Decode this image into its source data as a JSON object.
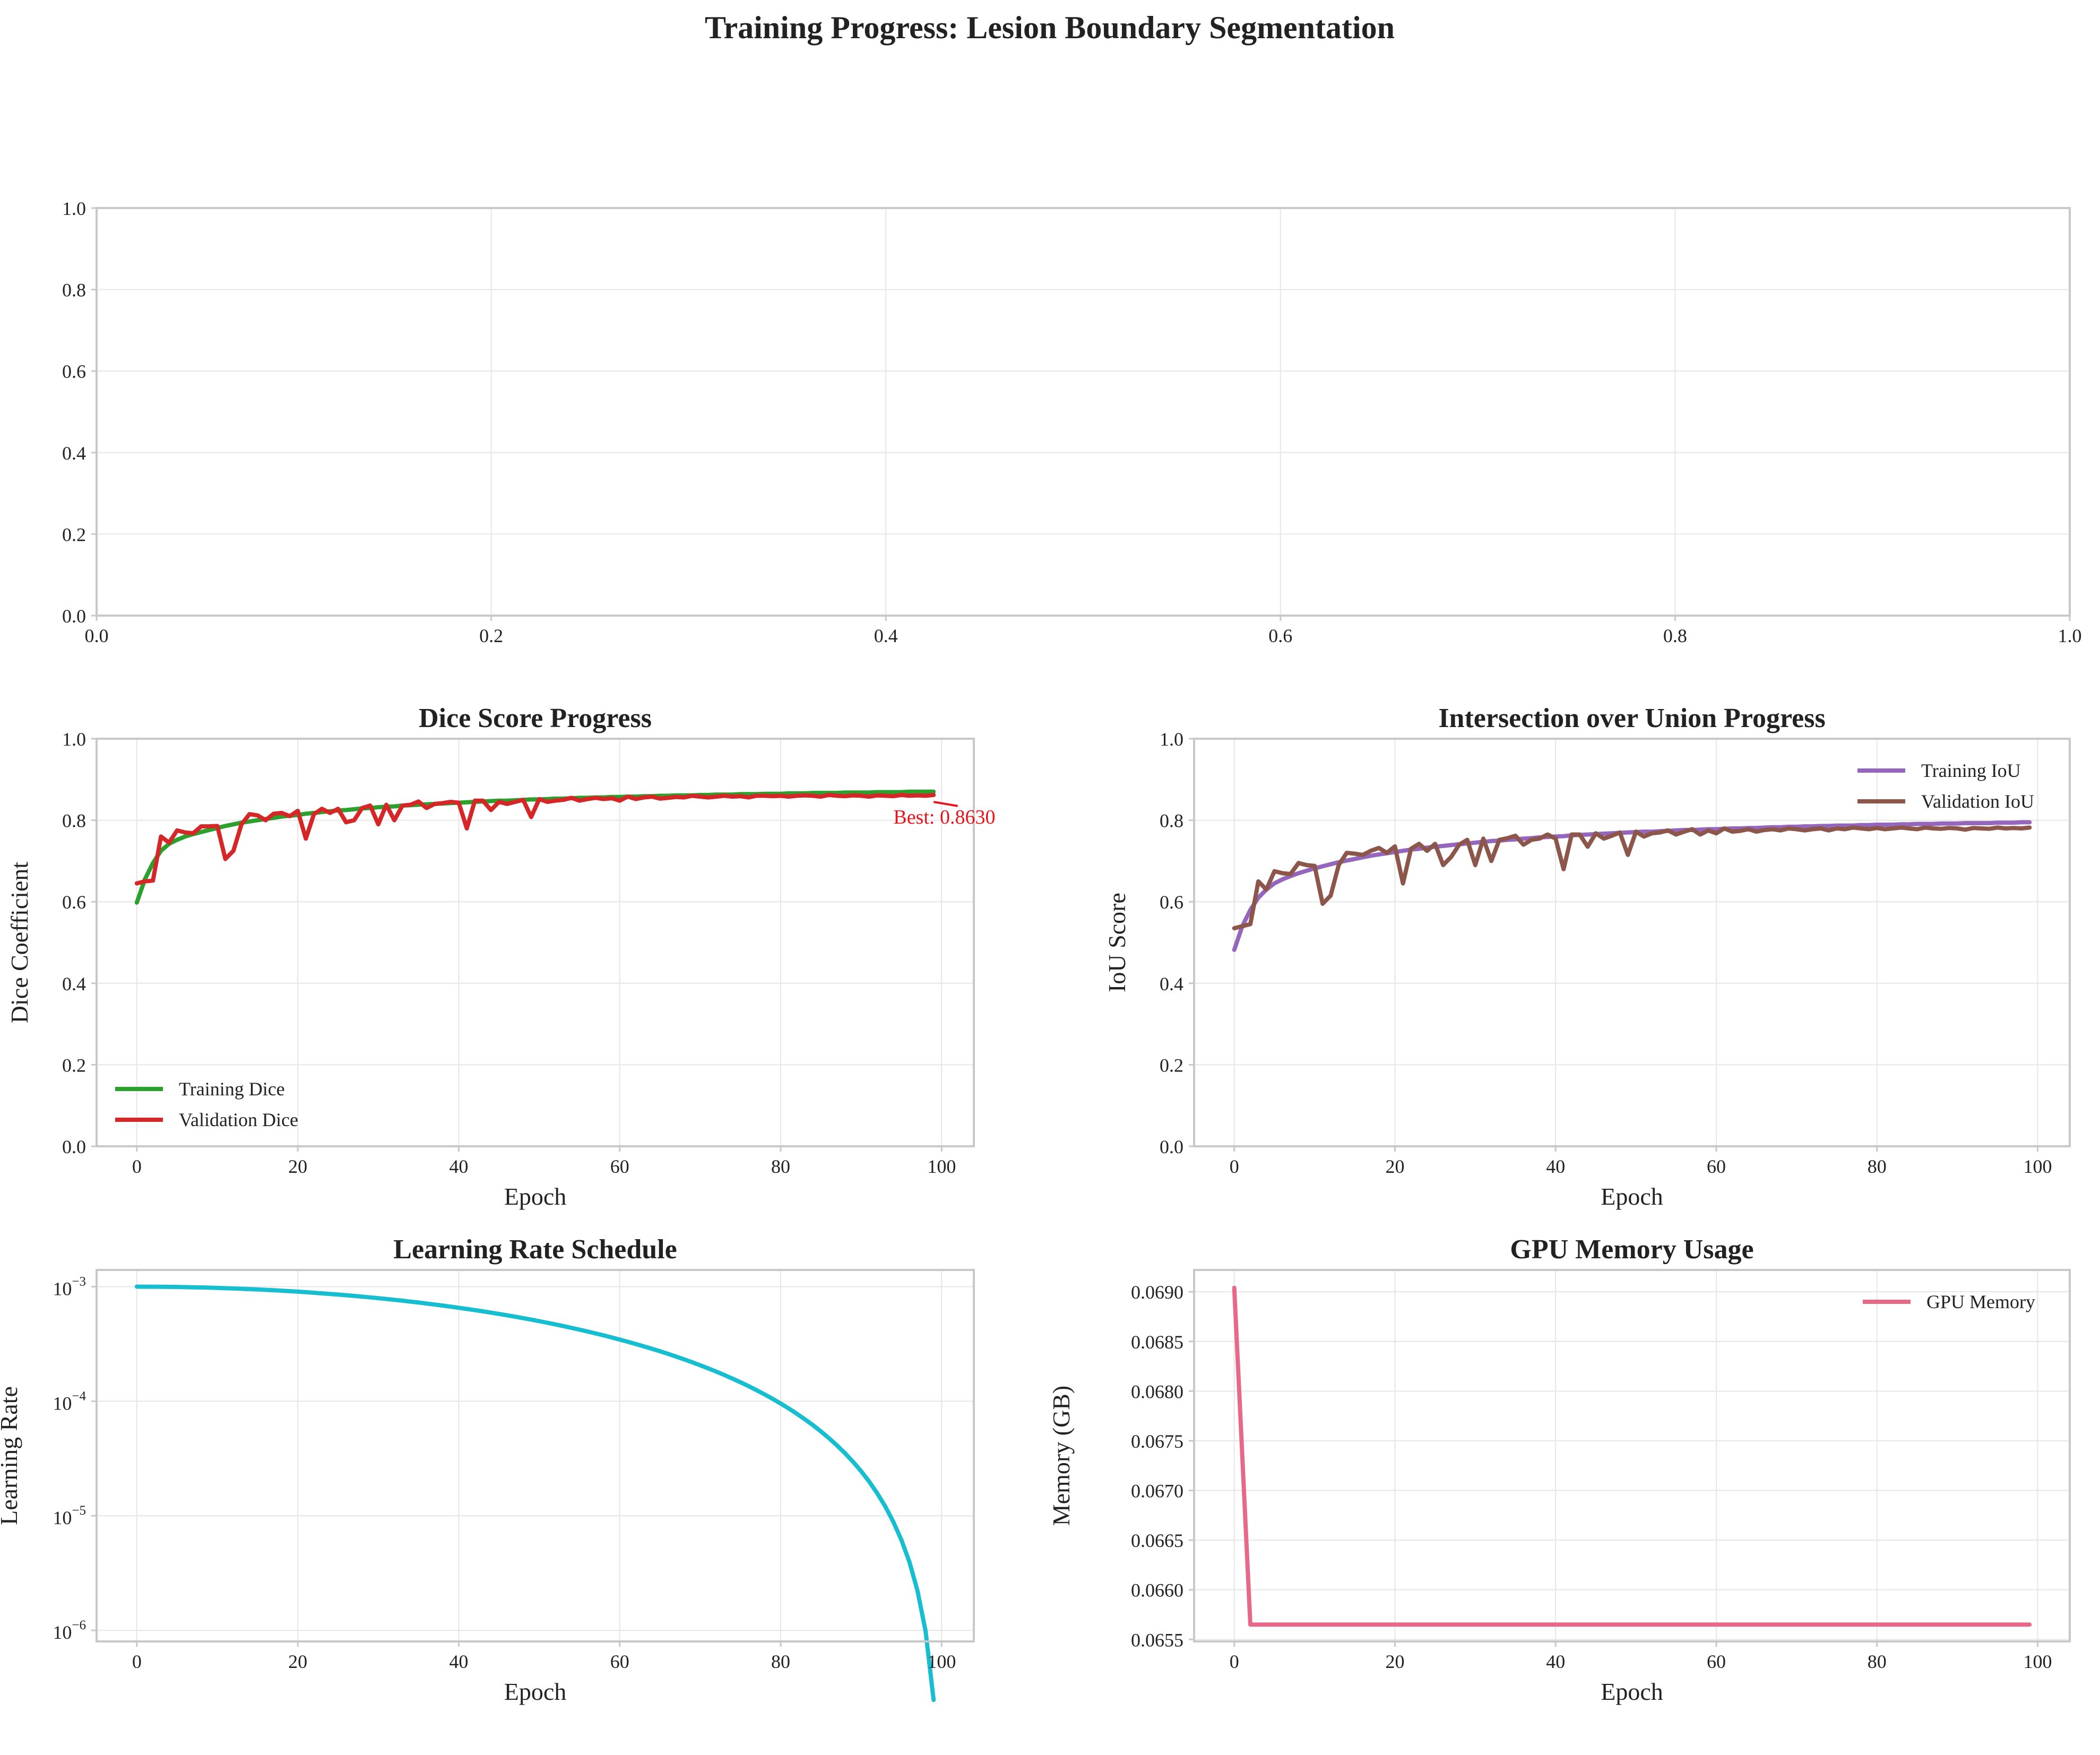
{
  "figure": {
    "title": "Training Progress: Lesion Boundary Segmentation"
  },
  "chart_data": [
    {
      "id": "empty",
      "type": "line",
      "title": "",
      "xlabel": "",
      "ylabel": "",
      "xlim": [
        0,
        1
      ],
      "ylim": [
        0,
        1
      ],
      "xticks": [
        0.0,
        0.2,
        0.4,
        0.6,
        0.8,
        1.0
      ],
      "yticks": [
        0.0,
        0.2,
        0.4,
        0.6,
        0.8,
        1.0
      ],
      "grid": true,
      "series": []
    },
    {
      "id": "dice",
      "type": "line",
      "title": "Dice Score Progress",
      "xlabel": "Epoch",
      "ylabel": "Dice Coefficient",
      "xlim": [
        -5,
        104
      ],
      "ylim": [
        0,
        1
      ],
      "xticks": [
        0,
        20,
        40,
        60,
        80,
        100
      ],
      "yticks": [
        0.0,
        0.2,
        0.4,
        0.6,
        0.8,
        1.0
      ],
      "grid": true,
      "legend": "lower-left",
      "series": [
        {
          "name": "Training Dice",
          "color": "#2ca02c",
          "x_start": 0,
          "x_step": 1,
          "values": [
            0.598,
            0.655,
            0.695,
            0.725,
            0.742,
            0.752,
            0.76,
            0.766,
            0.771,
            0.776,
            0.781,
            0.786,
            0.79,
            0.794,
            0.797,
            0.8,
            0.803,
            0.806,
            0.809,
            0.811,
            0.813,
            0.816,
            0.818,
            0.82,
            0.822,
            0.824,
            0.825,
            0.827,
            0.829,
            0.83,
            0.832,
            0.833,
            0.834,
            0.836,
            0.837,
            0.838,
            0.839,
            0.84,
            0.841,
            0.842,
            0.843,
            0.844,
            0.845,
            0.846,
            0.847,
            0.848,
            0.848,
            0.849,
            0.85,
            0.851,
            0.851,
            0.852,
            0.853,
            0.853,
            0.854,
            0.855,
            0.855,
            0.856,
            0.856,
            0.857,
            0.857,
            0.858,
            0.858,
            0.859,
            0.859,
            0.86,
            0.86,
            0.861,
            0.861,
            0.861,
            0.862,
            0.862,
            0.863,
            0.863,
            0.863,
            0.864,
            0.864,
            0.864,
            0.865,
            0.865,
            0.865,
            0.866,
            0.866,
            0.866,
            0.867,
            0.867,
            0.867,
            0.867,
            0.868,
            0.868,
            0.868,
            0.868,
            0.869,
            0.869,
            0.869,
            0.869,
            0.87,
            0.87,
            0.87,
            0.87
          ]
        },
        {
          "name": "Validation Dice",
          "color": "#d62728",
          "x_start": 0,
          "x_step": 1,
          "values": [
            0.645,
            0.65,
            0.652,
            0.76,
            0.745,
            0.775,
            0.77,
            0.768,
            0.785,
            0.785,
            0.786,
            0.705,
            0.725,
            0.79,
            0.815,
            0.812,
            0.8,
            0.816,
            0.818,
            0.81,
            0.823,
            0.755,
            0.815,
            0.828,
            0.818,
            0.828,
            0.795,
            0.8,
            0.83,
            0.836,
            0.79,
            0.838,
            0.8,
            0.836,
            0.838,
            0.846,
            0.83,
            0.84,
            0.842,
            0.845,
            0.843,
            0.78,
            0.848,
            0.848,
            0.825,
            0.845,
            0.84,
            0.845,
            0.85,
            0.808,
            0.852,
            0.845,
            0.848,
            0.85,
            0.855,
            0.848,
            0.852,
            0.855,
            0.852,
            0.854,
            0.848,
            0.858,
            0.852,
            0.856,
            0.858,
            0.853,
            0.855,
            0.857,
            0.856,
            0.86,
            0.858,
            0.856,
            0.858,
            0.86,
            0.858,
            0.859,
            0.856,
            0.86,
            0.86,
            0.859,
            0.86,
            0.858,
            0.86,
            0.861,
            0.86,
            0.858,
            0.862,
            0.86,
            0.859,
            0.861,
            0.86,
            0.858,
            0.861,
            0.86,
            0.859,
            0.862,
            0.86,
            0.861,
            0.86,
            0.862
          ]
        }
      ],
      "annotations": [
        {
          "text": "Best: 0.8630",
          "x": 94,
          "y": 0.81,
          "color": "#e8141b"
        }
      ]
    },
    {
      "id": "iou",
      "type": "line",
      "title": "Intersection over Union Progress",
      "xlabel": "Epoch",
      "ylabel": "IoU Score",
      "xlim": [
        -5,
        104
      ],
      "ylim": [
        0,
        1
      ],
      "xticks": [
        0,
        20,
        40,
        60,
        80,
        100
      ],
      "yticks": [
        0.0,
        0.2,
        0.4,
        0.6,
        0.8,
        1.0
      ],
      "grid": true,
      "legend": "upper-right",
      "series": [
        {
          "name": "Training IoU",
          "color": "#9467bd",
          "x_start": 0,
          "x_step": 1,
          "values": [
            0.482,
            0.54,
            0.58,
            0.61,
            0.63,
            0.645,
            0.655,
            0.663,
            0.67,
            0.676,
            0.682,
            0.687,
            0.692,
            0.697,
            0.701,
            0.705,
            0.709,
            0.713,
            0.716,
            0.719,
            0.722,
            0.725,
            0.728,
            0.73,
            0.733,
            0.735,
            0.737,
            0.739,
            0.741,
            0.743,
            0.745,
            0.747,
            0.749,
            0.75,
            0.752,
            0.753,
            0.755,
            0.756,
            0.758,
            0.759,
            0.76,
            0.761,
            0.763,
            0.764,
            0.765,
            0.766,
            0.767,
            0.768,
            0.769,
            0.77,
            0.771,
            0.772,
            0.772,
            0.773,
            0.774,
            0.775,
            0.776,
            0.776,
            0.777,
            0.778,
            0.778,
            0.779,
            0.78,
            0.78,
            0.781,
            0.781,
            0.782,
            0.783,
            0.783,
            0.784,
            0.784,
            0.785,
            0.785,
            0.786,
            0.786,
            0.787,
            0.787,
            0.787,
            0.788,
            0.788,
            0.789,
            0.789,
            0.789,
            0.79,
            0.79,
            0.791,
            0.791,
            0.791,
            0.792,
            0.792,
            0.792,
            0.793,
            0.793,
            0.793,
            0.793,
            0.794,
            0.794,
            0.794,
            0.795,
            0.795
          ]
        },
        {
          "name": "Validation IoU",
          "color": "#8c564b",
          "x_start": 0,
          "x_step": 1,
          "values": [
            0.535,
            0.54,
            0.545,
            0.65,
            0.63,
            0.675,
            0.67,
            0.668,
            0.695,
            0.69,
            0.688,
            0.595,
            0.615,
            0.69,
            0.72,
            0.718,
            0.715,
            0.725,
            0.732,
            0.72,
            0.736,
            0.645,
            0.73,
            0.742,
            0.725,
            0.742,
            0.69,
            0.71,
            0.74,
            0.752,
            0.69,
            0.755,
            0.7,
            0.752,
            0.756,
            0.762,
            0.74,
            0.752,
            0.755,
            0.765,
            0.755,
            0.68,
            0.765,
            0.765,
            0.735,
            0.768,
            0.755,
            0.762,
            0.77,
            0.715,
            0.772,
            0.76,
            0.768,
            0.77,
            0.775,
            0.765,
            0.772,
            0.778,
            0.765,
            0.775,
            0.768,
            0.78,
            0.772,
            0.774,
            0.778,
            0.772,
            0.776,
            0.778,
            0.775,
            0.78,
            0.778,
            0.775,
            0.778,
            0.78,
            0.775,
            0.78,
            0.778,
            0.782,
            0.78,
            0.778,
            0.781,
            0.778,
            0.78,
            0.782,
            0.78,
            0.778,
            0.782,
            0.78,
            0.779,
            0.781,
            0.78,
            0.777,
            0.781,
            0.78,
            0.779,
            0.782,
            0.78,
            0.781,
            0.78,
            0.782
          ]
        }
      ]
    },
    {
      "id": "lr",
      "type": "line",
      "title": "Learning Rate Schedule",
      "xlabel": "Epoch",
      "ylabel": "Learning Rate",
      "xlim": [
        -5,
        104
      ],
      "ylim": [
        8e-07,
        0.0014
      ],
      "yscale": "log",
      "xticks": [
        0,
        20,
        40,
        60,
        80,
        100
      ],
      "ytick_exponents": [
        -6,
        -5,
        -4,
        -3
      ],
      "grid": true,
      "series": [
        {
          "color": "#17becf",
          "x_start": 0,
          "x_step": 1,
          "count": 100,
          "formula": "0.001 * 0.5 * (1 + cos(pi * epoch / 100))"
        }
      ]
    },
    {
      "id": "gpu",
      "type": "line",
      "title": "GPU Memory Usage",
      "xlabel": "Epoch",
      "ylabel": "Memory (GB)",
      "xlim": [
        -5,
        104
      ],
      "ylim": [
        0.06548,
        0.06922
      ],
      "xticks": [
        0,
        20,
        40,
        60,
        80,
        100
      ],
      "yticks": [
        0.0655,
        0.066,
        0.0665,
        0.067,
        0.0675,
        0.068,
        0.0685,
        0.069
      ],
      "grid": true,
      "legend": "upper-right",
      "series": [
        {
          "name": "GPU Memory",
          "color": "#e8688a",
          "x": [
            0,
            2,
            99
          ],
          "values": [
            0.06904,
            0.06565,
            0.06565
          ]
        }
      ]
    }
  ]
}
